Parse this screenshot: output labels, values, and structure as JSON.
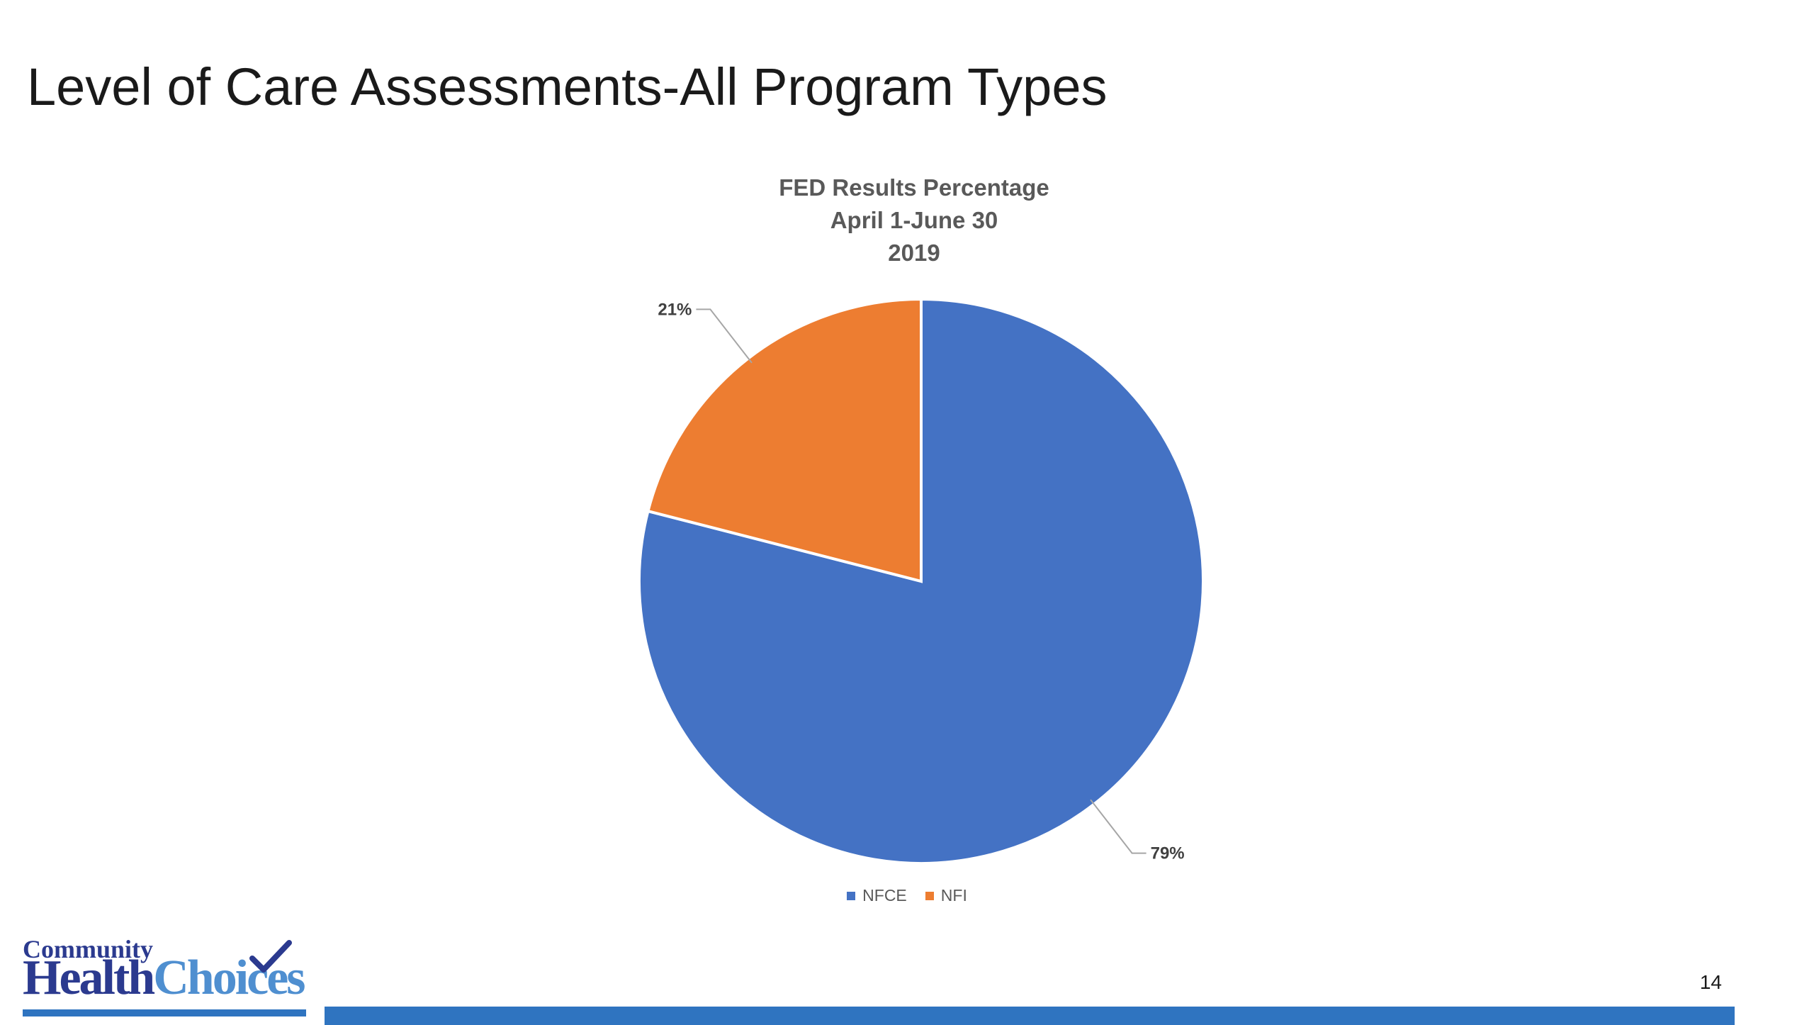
{
  "slide": {
    "title": "Level of Care Assessments-All Program Types",
    "page_number": "14"
  },
  "logo": {
    "line1": "Community",
    "line2a": "Health",
    "line2b": "Choices"
  },
  "chart_data": {
    "type": "pie",
    "title_lines": [
      "FED Results Percentage",
      "April 1-June 30",
      "2019"
    ],
    "categories": [
      "NFCE",
      "NFI"
    ],
    "values": [
      79,
      21
    ],
    "data_labels": [
      "79%",
      "21%"
    ],
    "colors": [
      "#4472c4",
      "#ed7d31"
    ],
    "start_angle_deg": 0,
    "direction": "clockwise",
    "legend": "bottom"
  }
}
